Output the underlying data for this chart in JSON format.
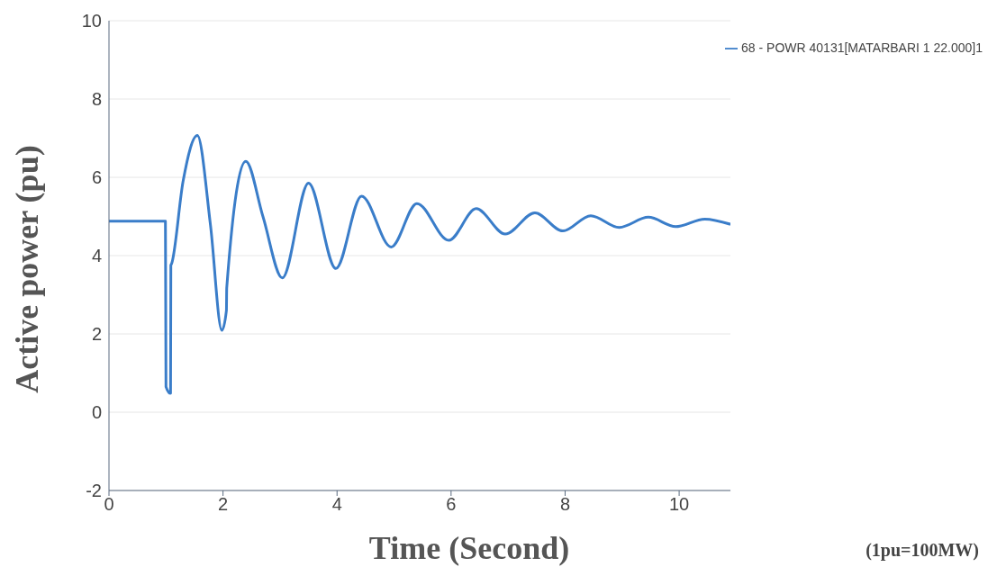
{
  "chart_data": {
    "type": "line",
    "xlabel": "Time (Second)",
    "ylabel": "Active power (pu)",
    "annotations": [
      "(1pu=100MW)"
    ],
    "xlim": [
      0,
      10.9
    ],
    "xticks": [
      0,
      2,
      4,
      6,
      8,
      10
    ],
    "ylim": [
      -2,
      10
    ],
    "yticks": [
      -2,
      0,
      2,
      4,
      6,
      8,
      10
    ],
    "grid": "y",
    "legend": "top right",
    "marker": "none",
    "line_style": "solid",
    "series": [
      {
        "name": "68 - POWR 40131[MATARBARI 1 22.000]1",
        "color": "#3a7dc9",
        "x": [
          0,
          0.99,
          1.0,
          1.08,
          1.085,
          1.1,
          1.3,
          1.55,
          1.78,
          1.98,
          2.06,
          2.065,
          2.4,
          2.7,
          3.04,
          3.5,
          3.98,
          4.43,
          4.95,
          5.4,
          5.96,
          6.44,
          6.95,
          7.47,
          7.96,
          8.45,
          8.95,
          9.46,
          9.94,
          10.45,
          10.9
        ],
        "values": [
          4.88,
          4.88,
          0.65,
          0.48,
          3.75,
          3.8,
          5.9,
          7.07,
          4.78,
          2.09,
          2.6,
          3.17,
          6.41,
          5.0,
          3.43,
          5.85,
          3.67,
          5.52,
          4.22,
          5.33,
          4.39,
          5.2,
          4.55,
          5.09,
          4.63,
          5.02,
          4.72,
          4.98,
          4.74,
          4.93,
          4.8
        ]
      }
    ]
  }
}
